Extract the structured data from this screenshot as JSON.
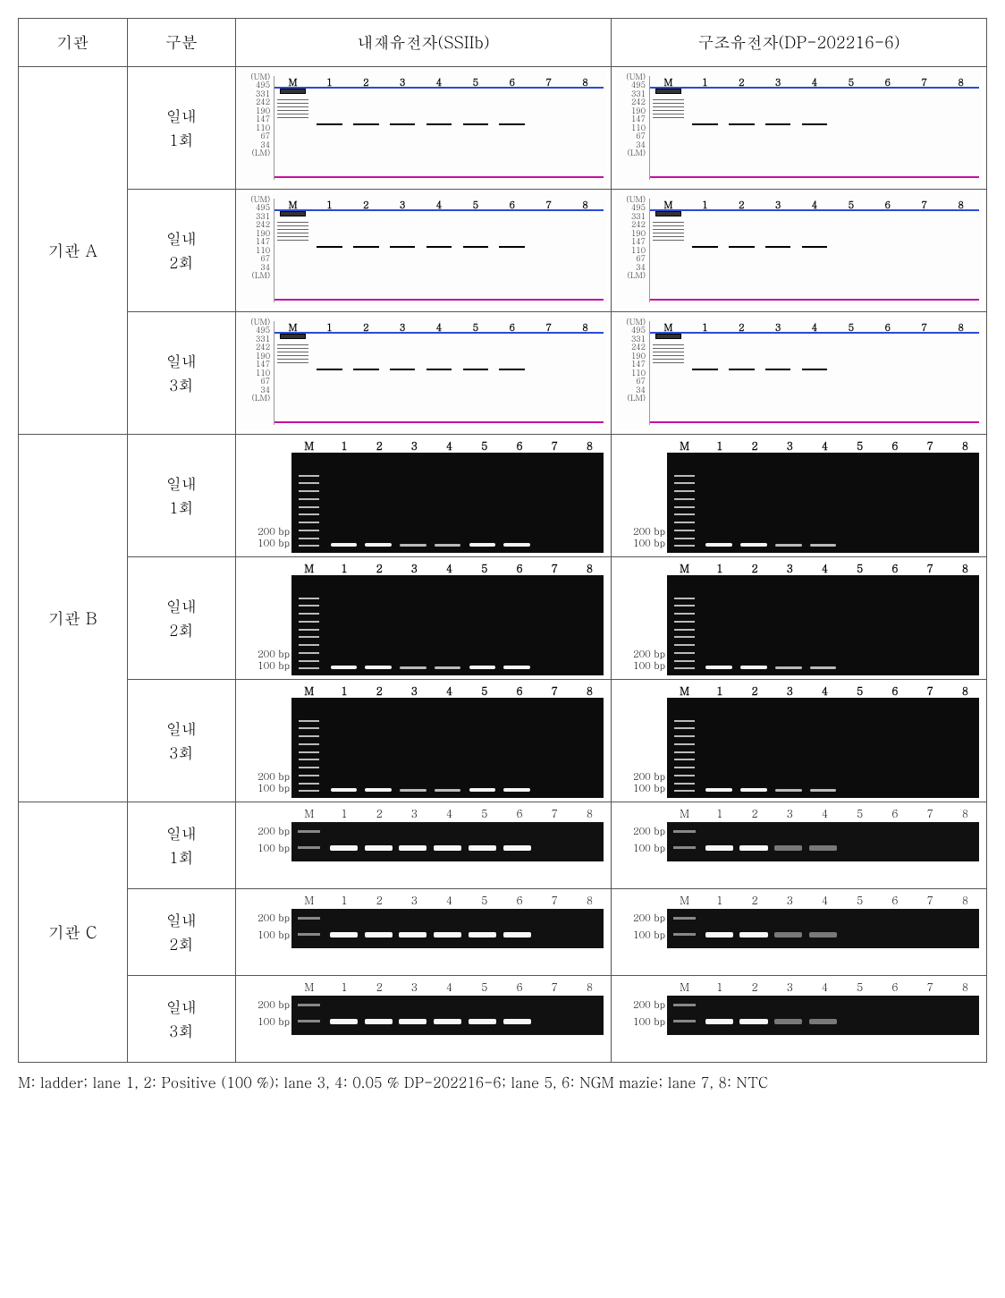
{
  "headers": {
    "org": "기관",
    "sub": "구분",
    "endogenous": "내재유전자(SSIIb)",
    "construct": "구조유전자(DP-202216-6)"
  },
  "orgs": {
    "A": "기관 A",
    "B": "기관 B",
    "C": "기관 C"
  },
  "replicates": {
    "r1a": "일내",
    "r1b": "1회",
    "r2a": "일내",
    "r2b": "2회",
    "r3a": "일내",
    "r3b": "3회"
  },
  "tierA": {
    "yticks": [
      "(UM)",
      "495",
      "331",
      "242",
      "190",
      "147",
      "110",
      "67",
      "34",
      "(LM)"
    ],
    "lane_labels": [
      "M",
      "1",
      "2",
      "3",
      "4",
      "5",
      "6",
      "7",
      "8"
    ],
    "band_top_pct": 46,
    "endogenous_band_lanes": [
      1,
      2,
      3,
      4,
      5,
      6
    ],
    "construct_band_lanes": [
      1,
      2,
      3,
      4
    ],
    "colors": {
      "top_marker": "#2a4bd7",
      "bottom_marker": "#c80fa0",
      "band": "#000000",
      "bg": "#fdfdfd"
    }
  },
  "tierB": {
    "lane_labels": [
      "M",
      "1",
      "2",
      "3",
      "4",
      "5",
      "6",
      "7",
      "8"
    ],
    "ylabel_top": "200 bp",
    "ylabel_bot": "100 bp",
    "band_bottom_pct": 6,
    "endogenous_band_lanes": [
      1,
      2,
      3,
      4,
      5,
      6
    ],
    "construct_band_lanes": [
      1,
      2,
      3,
      4
    ],
    "ladder_rungs": 10,
    "colors": {
      "bg": "#0c0c0c",
      "band": "#f5f5f5",
      "ladder": "#bbbbbb"
    }
  },
  "tierC": {
    "lane_labels": [
      "M",
      "1",
      "2",
      "3",
      "4",
      "5",
      "6",
      "7",
      "8"
    ],
    "ylabel_top": "200 bp",
    "ylabel_bot": "100 bp",
    "band_top_pct": 58,
    "endogenous_band_lanes": [
      1,
      2,
      3,
      4,
      5,
      6
    ],
    "construct_band_lanes": [
      1,
      2,
      3,
      4
    ],
    "construct_faint_lanes": [
      3,
      4
    ],
    "colors": {
      "bg": "#111111",
      "band": "#f8f8f8",
      "marker": "#888888"
    }
  },
  "caption": "M: ladder; lane 1, 2: Positive (100 %); lane 3, 4: 0.05 % DP-202216-6; lane 5, 6: NGM mazie; lane 7, 8: NTC"
}
